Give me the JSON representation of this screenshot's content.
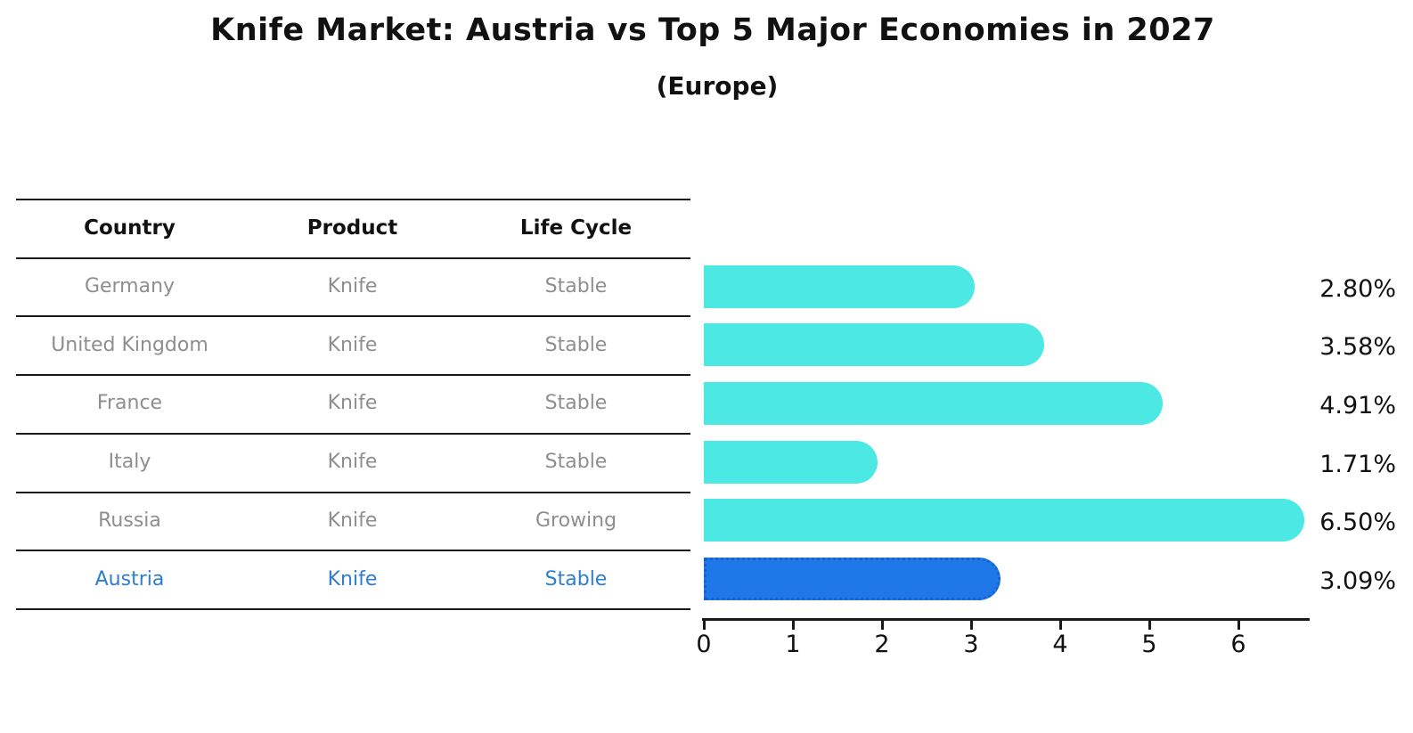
{
  "title": "Knife Market: Austria vs Top 5 Major Economies in 2027",
  "subtitle": "(Europe)",
  "colors": {
    "bar": "#4BE8E4",
    "highlight_bar": "#1E78E8",
    "highlight_bar_border": "#1A63CF",
    "highlight_text": "#2D7DD2",
    "muted_text": "#8E8E8E",
    "heading_text": "#111111",
    "axis": "#1A1A1A"
  },
  "chart_data": {
    "type": "bar",
    "orientation": "horizontal",
    "title": "Knife Market: Austria vs Top 5 Major Economies in 2027",
    "subtitle": "(Europe)",
    "columns": [
      "Country",
      "Product",
      "Life Cycle"
    ],
    "rows": [
      {
        "country": "Germany",
        "product": "Knife",
        "life_cycle": "Stable",
        "value": 2.8,
        "value_label": "2.80%",
        "highlighted": false
      },
      {
        "country": "United Kingdom",
        "product": "Knife",
        "life_cycle": "Stable",
        "value": 3.58,
        "value_label": "3.58%",
        "highlighted": false
      },
      {
        "country": "France",
        "product": "Knife",
        "life_cycle": "Stable",
        "value": 4.91,
        "value_label": "4.91%",
        "highlighted": false
      },
      {
        "country": "Italy",
        "product": "Knife",
        "life_cycle": "Stable",
        "value": 1.71,
        "value_label": "1.71%",
        "highlighted": false
      },
      {
        "country": "Russia",
        "product": "Knife",
        "life_cycle": "Growing",
        "value": 6.5,
        "value_label": "6.50%",
        "highlighted": false
      },
      {
        "country": "Austria",
        "product": "Knife",
        "life_cycle": "Stable",
        "value": 3.09,
        "value_label": "3.09%",
        "highlighted": true
      }
    ],
    "xlabel": "",
    "ylabel": "",
    "x_ticks": [
      0,
      1,
      2,
      3,
      4,
      5,
      6
    ],
    "xlim": [
      0,
      6.8
    ],
    "grid": false,
    "legend": false
  }
}
